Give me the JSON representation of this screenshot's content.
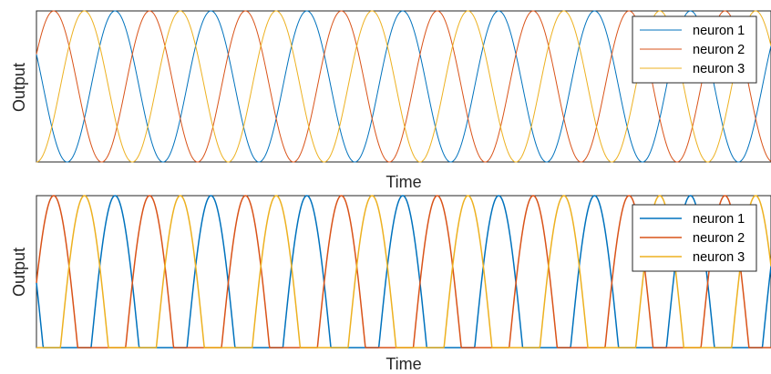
{
  "chart_data": [
    {
      "type": "line",
      "xlabel": "Time",
      "ylabel": "Output",
      "xlim": [
        0,
        7.66
      ],
      "ylim": [
        0,
        1
      ],
      "grid": false,
      "ticks_shown": false,
      "legend_position": "top-right",
      "description_of_data": "Phase-shifted sinusoids, output = 0.5 + 0.5*cos(2*pi*(t - phase)), one period per time unit",
      "x": [
        0,
        0.25,
        0.5,
        0.75,
        1,
        1.25,
        1.5,
        1.75,
        2,
        2.25,
        2.5,
        2.75,
        3,
        3.25,
        3.5,
        3.75,
        4,
        4.25,
        4.5,
        4.75,
        5,
        5.25,
        5.5,
        5.75,
        6,
        6.25,
        6.5,
        6.75,
        7,
        7.25,
        7.5,
        7.66
      ],
      "series": [
        {
          "name": "neuron 1",
          "color": "#0072BD",
          "phase": 0.82,
          "values": [
            0.79,
            0.98,
            0.21,
            0.02,
            0.79,
            0.98,
            0.21,
            0.02,
            0.79,
            0.98,
            0.21,
            0.02,
            0.79,
            0.98,
            0.21,
            0.02,
            0.79,
            0.98,
            0.21,
            0.02,
            0.79,
            0.98,
            0.21,
            0.02,
            0.79,
            0.98,
            0.21,
            0.02,
            0.79,
            0.98,
            0.21,
            0.98
          ]
        },
        {
          "name": "neuron 2",
          "color": "#D95319",
          "phase": 0.18,
          "values": [
            0.58,
            0.0,
            0.42,
            1.0,
            0.58,
            0.0,
            0.42,
            1.0,
            0.58,
            0.0,
            0.42,
            1.0,
            0.58,
            0.0,
            0.42,
            1.0,
            0.58,
            0.0,
            0.42,
            1.0,
            0.58,
            0.0,
            0.42,
            1.0,
            0.58,
            0.0,
            0.42,
            1.0,
            0.58,
            0.0,
            0.42,
            0.1
          ]
        },
        {
          "name": "neuron 3",
          "color": "#EDB120",
          "phase": 0.5,
          "values": [
            0.0,
            0.5,
            1.0,
            0.5,
            0.0,
            0.5,
            1.0,
            0.5,
            0.0,
            0.5,
            1.0,
            0.5,
            0.0,
            0.5,
            1.0,
            0.5,
            0.0,
            0.5,
            1.0,
            0.5,
            0.0,
            0.5,
            1.0,
            0.5,
            0.0,
            0.5,
            1.0,
            0.5,
            0.0,
            0.5,
            1.0,
            0.55
          ]
        }
      ],
      "legend": [
        "neuron 1",
        "neuron 2",
        "neuron 3"
      ]
    },
    {
      "type": "line",
      "xlabel": "Time",
      "ylabel": "Output",
      "xlim": [
        0,
        7.66
      ],
      "ylim": [
        0,
        1
      ],
      "grid": false,
      "ticks_shown": false,
      "legend_position": "top-right",
      "description_of_data": "Rectified phase-shifted sinusoids with zero plateaus, output = max(0, cos(2*pi*(t - phase))), one period per time unit",
      "x": [
        0,
        0.25,
        0.5,
        0.75,
        1,
        1.25,
        1.5,
        1.75,
        2,
        2.25,
        2.5,
        2.75,
        3,
        3.25,
        3.5,
        3.75,
        4,
        4.25,
        4.5,
        4.75,
        5,
        5.25,
        5.5,
        5.75,
        6,
        6.25,
        6.5,
        6.75,
        7,
        7.25,
        7.5,
        7.66
      ],
      "series": [
        {
          "name": "neuron 1",
          "color": "#0072BD",
          "phase": 0.82,
          "values": [
            0.56,
            0.95,
            0.0,
            0.0,
            0.56,
            0.95,
            0.0,
            0.0,
            0.56,
            0.95,
            0.0,
            0.0,
            0.56,
            0.95,
            0.0,
            0.0,
            0.56,
            0.95,
            0.0,
            0.0,
            0.56,
            0.95,
            0.0,
            0.0,
            0.56,
            0.95,
            0.0,
            0.0,
            0.56,
            0.95,
            0.0,
            0.97
          ]
        },
        {
          "name": "neuron 2",
          "color": "#D95319",
          "phase": 0.18,
          "values": [
            0.42,
            0.0,
            0.0,
            0.98,
            0.42,
            0.0,
            0.0,
            0.98,
            0.42,
            0.0,
            0.0,
            0.98,
            0.42,
            0.0,
            0.0,
            0.98,
            0.42,
            0.0,
            0.0,
            0.98,
            0.42,
            0.0,
            0.0,
            0.98,
            0.42,
            0.0,
            0.0,
            0.98,
            0.42,
            0.0,
            0.0,
            0.0
          ]
        },
        {
          "name": "neuron 3",
          "color": "#EDB120",
          "phase": 0.5,
          "values": [
            0.0,
            0.0,
            1.0,
            0.0,
            0.0,
            0.0,
            1.0,
            0.0,
            0.0,
            0.0,
            1.0,
            0.0,
            0.0,
            0.0,
            1.0,
            0.0,
            0.0,
            0.0,
            1.0,
            0.0,
            0.0,
            0.0,
            1.0,
            0.0,
            0.0,
            0.0,
            1.0,
            0.0,
            0.0,
            0.0,
            1.0,
            0.1
          ]
        }
      ],
      "legend": [
        "neuron 1",
        "neuron 2",
        "neuron 3"
      ]
    }
  ]
}
